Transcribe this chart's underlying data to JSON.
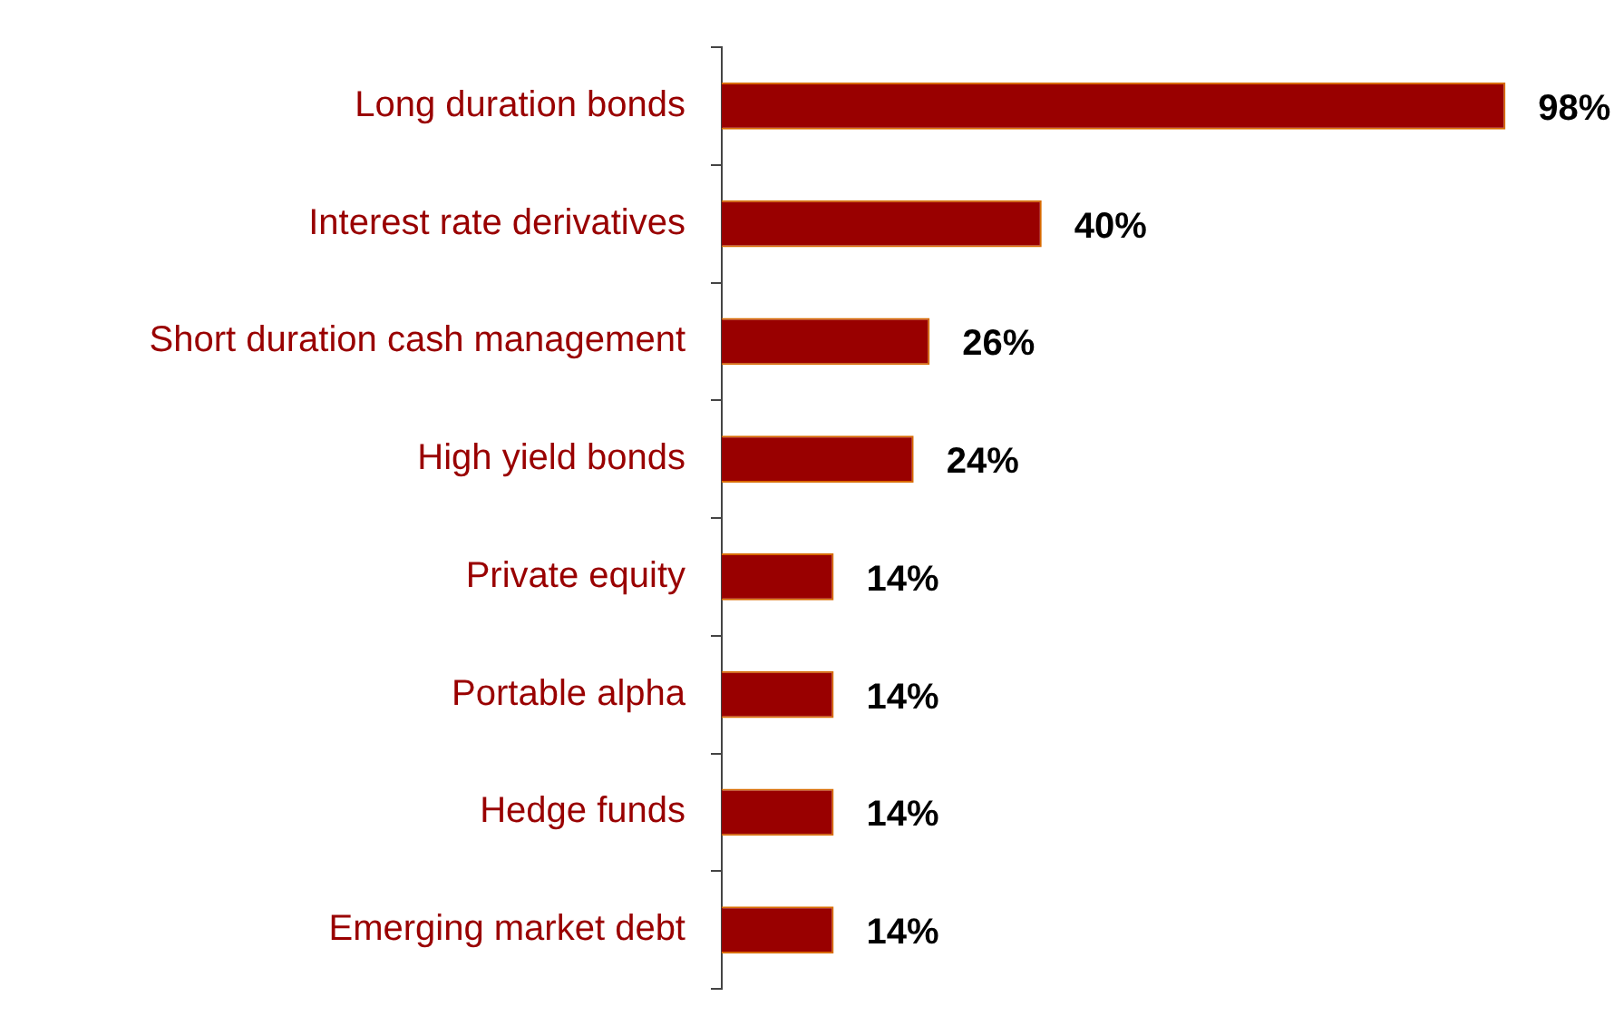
{
  "chart_data": {
    "type": "bar",
    "orientation": "horizontal",
    "categories": [
      "Long duration bonds",
      "Interest rate derivatives",
      "Short duration cash management",
      "High yield bonds",
      "Private equity",
      "Portable alpha",
      "Hedge funds",
      "Emerging market debt"
    ],
    "values": [
      98,
      40,
      26,
      24,
      14,
      14,
      14,
      14
    ],
    "value_labels": [
      "98%",
      "40%",
      "26%",
      "24%",
      "14%",
      "14%",
      "14%",
      "14%"
    ],
    "color": "#990000",
    "tick_labels": "y",
    "legend": false
  }
}
